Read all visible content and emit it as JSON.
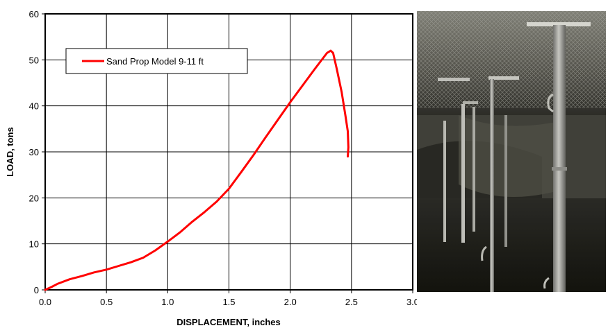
{
  "chart_data": {
    "type": "line",
    "xlabel": "DISPLACEMENT, inches",
    "ylabel": "LOAD, tons",
    "xlim": [
      0,
      3
    ],
    "ylim": [
      0,
      60
    ],
    "x_ticks": [
      "0.0",
      "0.5",
      "1.0",
      "1.5",
      "2.0",
      "2.5",
      "3.0"
    ],
    "y_ticks": [
      "0",
      "10",
      "20",
      "30",
      "40",
      "50",
      "60"
    ],
    "grid": true,
    "legend_position": "top-left",
    "series": [
      {
        "name": "Sand Prop Model 9-11 ft",
        "color": "#ff0000",
        "points": [
          [
            0.0,
            0.0
          ],
          [
            0.05,
            0.6
          ],
          [
            0.1,
            1.3
          ],
          [
            0.2,
            2.3
          ],
          [
            0.3,
            3.0
          ],
          [
            0.4,
            3.8
          ],
          [
            0.5,
            4.4
          ],
          [
            0.6,
            5.2
          ],
          [
            0.7,
            6.0
          ],
          [
            0.8,
            7.0
          ],
          [
            0.9,
            8.6
          ],
          [
            1.0,
            10.5
          ],
          [
            1.1,
            12.5
          ],
          [
            1.2,
            14.8
          ],
          [
            1.3,
            16.9
          ],
          [
            1.4,
            19.2
          ],
          [
            1.5,
            22.0
          ],
          [
            1.6,
            25.6
          ],
          [
            1.7,
            29.3
          ],
          [
            1.8,
            33.2
          ],
          [
            1.9,
            37.0
          ],
          [
            2.0,
            40.8
          ],
          [
            2.1,
            44.4
          ],
          [
            2.2,
            48.0
          ],
          [
            2.3,
            51.5
          ],
          [
            2.33,
            52.0
          ],
          [
            2.35,
            51.5
          ],
          [
            2.38,
            48.0
          ],
          [
            2.42,
            43.0
          ],
          [
            2.45,
            38.0
          ],
          [
            2.47,
            34.5
          ],
          [
            2.475,
            31.0
          ],
          [
            2.47,
            29.0
          ]
        ]
      }
    ]
  },
  "photo": {
    "icon": "underground-mine-props-photo"
  }
}
